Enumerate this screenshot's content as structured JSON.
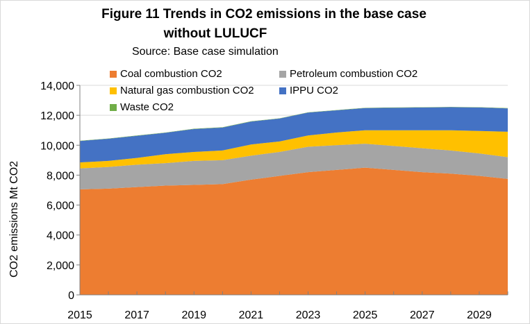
{
  "chart_data": {
    "type": "area",
    "stacked": true,
    "title": "Figure 11  Trends in CO2 emissions in the base case without LULUCF",
    "title_lines": [
      "Figure 11  Trends in CO2 emissions in the base case",
      "without LULUCF"
    ],
    "subtitle": "Source: Base case simulation",
    "xlabel": "",
    "ylabel": "CO2 emissions   Mt CO2",
    "x": [
      2015,
      2016,
      2017,
      2018,
      2019,
      2020,
      2021,
      2022,
      2023,
      2024,
      2025,
      2026,
      2027,
      2028,
      2029,
      2030
    ],
    "x_tick_labels": [
      "2015",
      "2017",
      "2019",
      "2021",
      "2023",
      "2025",
      "2027",
      "2029"
    ],
    "ylim": [
      0,
      14000
    ],
    "y_tick_labels": [
      "0",
      "2,000",
      "4,000",
      "6,000",
      "8,000",
      "10,000",
      "12,000",
      "14,000"
    ],
    "y_ticks": [
      0,
      2000,
      4000,
      6000,
      8000,
      10000,
      12000,
      14000
    ],
    "grid": true,
    "legend_position": "top-left inside",
    "series": [
      {
        "name": "Coal combustion CO2",
        "color": "#ED7D31",
        "values": [
          7050,
          7100,
          7200,
          7300,
          7350,
          7400,
          7700,
          7950,
          8200,
          8350,
          8500,
          8350,
          8200,
          8100,
          7950,
          7750
        ]
      },
      {
        "name": "Petroleum combustion CO2",
        "color": "#A5A5A5",
        "values": [
          1400,
          1450,
          1500,
          1500,
          1600,
          1600,
          1600,
          1600,
          1700,
          1650,
          1600,
          1600,
          1600,
          1550,
          1500,
          1450
        ]
      },
      {
        "name": "Natural gas combustion CO2",
        "color": "#FFC000",
        "values": [
          400,
          400,
          450,
          600,
          600,
          650,
          750,
          700,
          750,
          850,
          900,
          1050,
          1200,
          1350,
          1500,
          1700
        ]
      },
      {
        "name": "IPPU CO2",
        "color": "#4472C4",
        "values": [
          1430,
          1480,
          1480,
          1430,
          1530,
          1530,
          1530,
          1530,
          1530,
          1480,
          1480,
          1500,
          1520,
          1540,
          1570,
          1560
        ]
      },
      {
        "name": "Waste CO2",
        "color": "#70AD47",
        "values": [
          20,
          20,
          20,
          20,
          20,
          20,
          20,
          20,
          20,
          20,
          20,
          20,
          20,
          20,
          20,
          20
        ]
      }
    ]
  }
}
